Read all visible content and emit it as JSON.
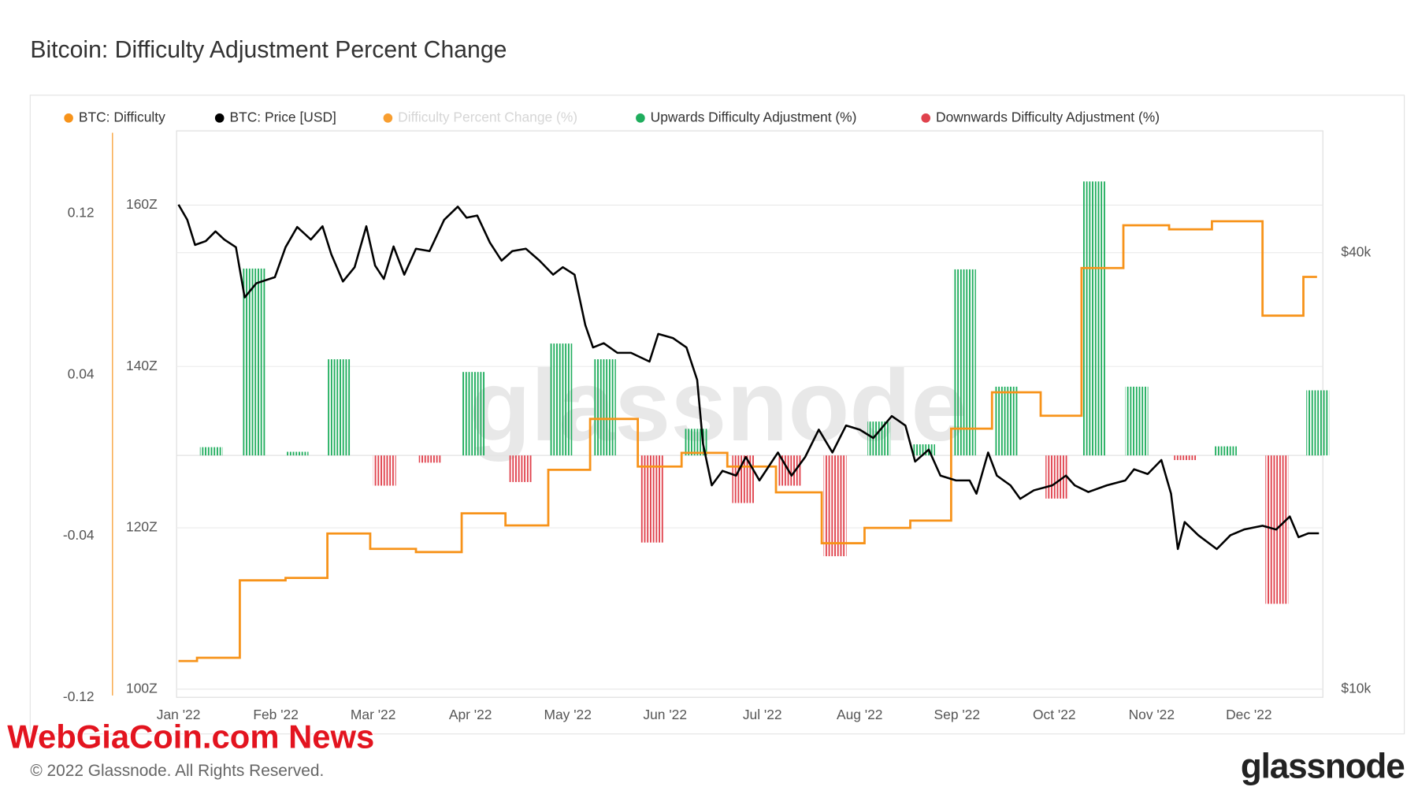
{
  "chart_data": {
    "type": "combo",
    "title": "Bitcoin: Difficulty Adjustment Percent Change",
    "copyright": "© 2022 Glassnode. All Rights Reserved.",
    "brand": "glassnode",
    "overlay_watermark": "WebGiaCoin.com News",
    "xlim": [
      -0.02,
      11.76
    ],
    "xticks": [
      {
        "value": 0,
        "label": "Jan '22"
      },
      {
        "value": 1,
        "label": "Feb '22"
      },
      {
        "value": 2,
        "label": "Mar '22"
      },
      {
        "value": 3,
        "label": "Apr '22"
      },
      {
        "value": 4,
        "label": "May '22"
      },
      {
        "value": 5,
        "label": "Jun '22"
      },
      {
        "value": 6,
        "label": "Jul '22"
      },
      {
        "value": 7,
        "label": "Aug '22"
      },
      {
        "value": 8,
        "label": "Sep '22"
      },
      {
        "value": 9,
        "label": "Oct '22"
      },
      {
        "value": 10,
        "label": "Nov '22"
      },
      {
        "value": 11,
        "label": "Dec '22"
      }
    ],
    "ylim": [
      99,
      169.2
    ],
    "yticks": [
      {
        "value": 100,
        "label": "100Z"
      },
      {
        "value": 120,
        "label": "120Z"
      },
      {
        "value": 140,
        "label": "140Z"
      },
      {
        "value": 160,
        "label": "160Z"
      }
    ],
    "y2lim": [
      9740,
      58900
    ],
    "y2log": true,
    "y2ticks": [
      {
        "value": 10000,
        "label": "$10k"
      },
      {
        "value": 40000,
        "label": "$40k"
      }
    ],
    "y3lim": [
      -0.12,
      0.161
    ],
    "y3ticks": [
      -0.12,
      -0.04,
      0.04,
      0.12
    ],
    "grid": true,
    "series": [
      {
        "name": "BTC: Difficulty",
        "type": "step",
        "axis": "y",
        "color": "#f7931a",
        "visible": true,
        "x": [
          0,
          0.19,
          0.63,
          1.1,
          1.53,
          1.97,
          2.44,
          2.91,
          3.36,
          3.8,
          4.23,
          4.72,
          5.17,
          5.64,
          6.14,
          6.61,
          7.05,
          7.52,
          7.94,
          8.36,
          8.86,
          9.28,
          9.71,
          10.18,
          10.62,
          11.14,
          11.56,
          11.7
        ],
        "values": [
          103.5,
          103.9,
          113.5,
          113.8,
          119.3,
          117.4,
          117.0,
          121.8,
          120.3,
          127.2,
          133.5,
          127.6,
          129.3,
          127.6,
          124.4,
          118.1,
          120.0,
          120.9,
          132.3,
          136.8,
          133.9,
          152.2,
          157.5,
          157.0,
          158.0,
          146.3,
          151.1,
          151.1
        ]
      },
      {
        "name": "BTC: Price [USD]",
        "type": "line",
        "axis": "y2",
        "color": "#000000",
        "visible": true,
        "x": [
          0,
          0.09,
          0.17,
          0.28,
          0.38,
          0.47,
          0.59,
          0.68,
          0.8,
          0.99,
          1.1,
          1.22,
          1.36,
          1.48,
          1.57,
          1.69,
          1.81,
          1.93,
          2.02,
          2.11,
          2.21,
          2.32,
          2.44,
          2.58,
          2.73,
          2.87,
          2.96,
          3.07,
          3.2,
          3.32,
          3.43,
          3.57,
          3.71,
          3.85,
          3.95,
          4.07,
          4.18,
          4.26,
          4.37,
          4.51,
          4.65,
          4.84,
          4.93,
          5.08,
          5.22,
          5.33,
          5.39,
          5.48,
          5.59,
          5.73,
          5.83,
          5.97,
          6.16,
          6.3,
          6.44,
          6.58,
          6.72,
          6.86,
          7.0,
          7.14,
          7.33,
          7.47,
          7.57,
          7.71,
          7.83,
          7.99,
          8.13,
          8.2,
          8.32,
          8.41,
          8.55,
          8.65,
          8.79,
          8.98,
          9.12,
          9.21,
          9.35,
          9.54,
          9.73,
          9.82,
          9.96,
          10.1,
          10.2,
          10.27,
          10.34,
          10.48,
          10.67,
          10.81,
          10.95,
          11.14,
          11.28,
          11.42,
          11.51,
          11.61,
          11.72
        ],
        "values": [
          46600,
          44400,
          41000,
          41500,
          42800,
          41700,
          40700,
          34700,
          36300,
          37000,
          40700,
          43400,
          41700,
          43500,
          39800,
          36500,
          38200,
          43500,
          38400,
          36800,
          40800,
          37300,
          40500,
          40200,
          44400,
          46300,
          44700,
          45000,
          41300,
          39000,
          40200,
          40500,
          39000,
          37300,
          38200,
          37300,
          31800,
          29600,
          30000,
          29100,
          29100,
          28300,
          30900,
          30500,
          29600,
          26700,
          21800,
          19100,
          20000,
          19700,
          20900,
          19400,
          21200,
          19700,
          20900,
          22800,
          21200,
          23100,
          22800,
          22200,
          23800,
          23100,
          20600,
          21400,
          19700,
          19400,
          19400,
          18600,
          21200,
          19700,
          19100,
          18300,
          18800,
          19100,
          19700,
          19100,
          18700,
          19100,
          19400,
          20100,
          19800,
          20700,
          18600,
          15600,
          17000,
          16300,
          15600,
          16300,
          16600,
          16800,
          16600,
          17300,
          16200,
          16400,
          16400
        ]
      },
      {
        "name": "Difficulty Percent Change (%)",
        "type": "bar",
        "axis": "y3",
        "color": "#f7931a",
        "visible": false
      },
      {
        "name": "Upwards Difficulty Adjustment (%)",
        "type": "bar",
        "axis": "y3",
        "color": "#1fad5d",
        "visible": true,
        "x": [
          0.22,
          0.66,
          1.1,
          1.53,
          2.91,
          3.81,
          4.26,
          5.2,
          7.08,
          7.54,
          7.96,
          8.39,
          9.29,
          9.73,
          10.64,
          11.59
        ],
        "values": [
          0.0041,
          0.0927,
          0.0018,
          0.0477,
          0.0414,
          0.0555,
          0.0477,
          0.0132,
          0.0168,
          0.0055,
          0.0923,
          0.0341,
          0.1359,
          0.0341,
          0.0045,
          0.0323
        ]
      },
      {
        "name": "Downwards Difficulty Adjustment (%)",
        "type": "bar",
        "axis": "y3",
        "color": "#e0424d",
        "visible": true,
        "x": [
          2.0,
          2.47,
          3.4,
          4.75,
          5.69,
          6.16,
          6.63,
          8.91,
          10.23,
          11.17
        ],
        "values": [
          -0.015,
          -0.0036,
          -0.0132,
          -0.0432,
          -0.0236,
          -0.015,
          -0.05,
          -0.0214,
          -0.0023,
          -0.0736
        ]
      }
    ]
  }
}
